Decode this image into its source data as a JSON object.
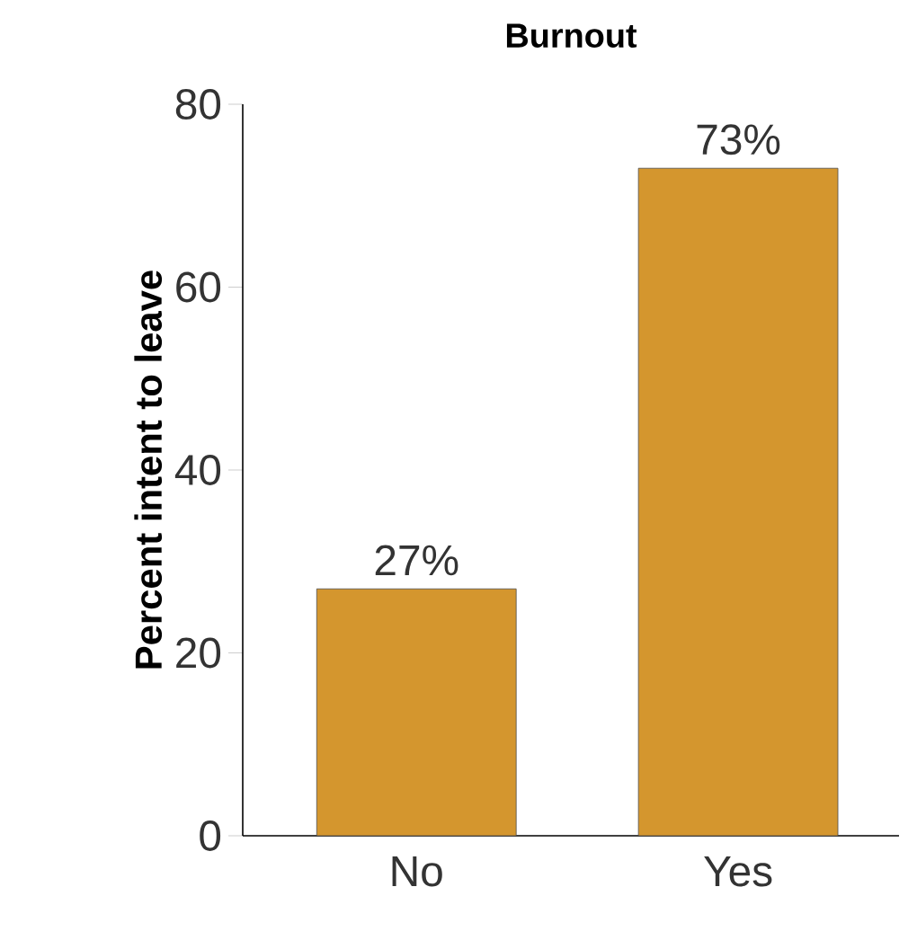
{
  "chart_data": {
    "type": "bar",
    "title": "Burnout",
    "ylabel": "Percent intent to leave",
    "categories": [
      "No",
      "Yes"
    ],
    "values": [
      27,
      73
    ],
    "value_labels": [
      "27%",
      "73%"
    ],
    "color": "#d4962e",
    "ylim": [
      0,
      80
    ],
    "yticks": [
      0,
      20,
      40,
      60,
      80
    ]
  }
}
